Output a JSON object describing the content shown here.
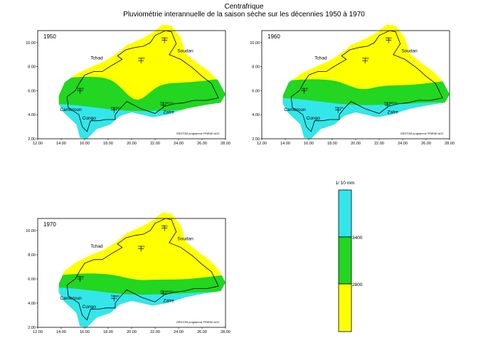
{
  "title": "Centrafrique",
  "subtitle": "Pluviométrie interannuelle de la saison sèche sur les décennies 1950 à 1970",
  "colors": {
    "high": "#33e6ea",
    "mid": "#22d622",
    "low": "#ffff00",
    "border": "#000000"
  },
  "axes": {
    "x_ticks": [
      "12.00",
      "14.00",
      "16.00",
      "18.00",
      "20.00",
      "22.00",
      "24.00",
      "26.00",
      "28.00"
    ],
    "y_ticks": [
      "2.00",
      "4.00",
      "6.00",
      "8.00",
      "10.00"
    ]
  },
  "maps": [
    {
      "year": "1950",
      "mid_south_lat": 4.6,
      "mid_north_lat": 6.9,
      "dip": 1.6
    },
    {
      "year": "1960",
      "mid_south_lat": 5.1,
      "mid_north_lat": 6.7,
      "dip": 0.5
    },
    {
      "year": "1970",
      "mid_south_lat": 5.0,
      "mid_north_lat": 6.2,
      "dip": 0.2
    }
  ],
  "labels": {
    "countries": [
      "Tchad",
      "Soudan",
      "Cameroun",
      "Congo",
      "Zaïre"
    ],
    "cities": [
      "Birao",
      "Ndélé",
      "Bouar",
      "Bangui",
      "Bangassou"
    ],
    "credit": "ORSTOM programme FRIEND AOC"
  },
  "legend": {
    "unit": "1/ 10 mm",
    "levels": [
      "3400",
      "2800"
    ]
  }
}
